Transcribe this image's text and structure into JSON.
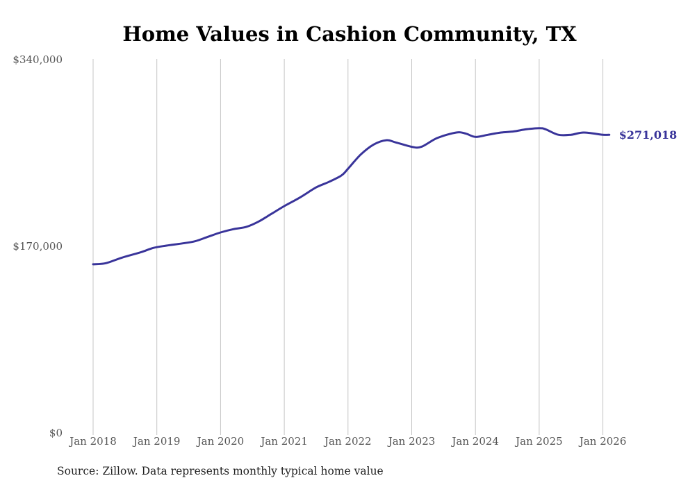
{
  "chart_data": {
    "type": "line",
    "title": "Home Values in Cashion Community, TX",
    "xlabel": "",
    "ylabel": "",
    "ylim": [
      0,
      340000
    ],
    "yticks": [
      0,
      170000,
      340000
    ],
    "ytick_labels": [
      "$0",
      "$170,000",
      "$340,000"
    ],
    "xlim": [
      2018.0,
      2026.1
    ],
    "xticks": [
      2018,
      2019,
      2020,
      2021,
      2022,
      2023,
      2024,
      2025,
      2026
    ],
    "xtick_labels": [
      "Jan 2018",
      "Jan 2019",
      "Jan 2020",
      "Jan 2021",
      "Jan 2022",
      "Jan 2023",
      "Jan 2024",
      "Jan 2025",
      "Jan 2026"
    ],
    "grid": "vertical",
    "series": [
      {
        "name": "Typical home value",
        "color": "#39349a",
        "x": [
          2018.0,
          2018.2,
          2018.45,
          2018.75,
          2018.95,
          2019.15,
          2019.4,
          2019.6,
          2019.8,
          2020.0,
          2020.2,
          2020.4,
          2020.6,
          2020.8,
          2021.0,
          2021.25,
          2021.5,
          2021.7,
          2021.9,
          2022.0,
          2022.2,
          2022.4,
          2022.6,
          2022.75,
          2023.0,
          2023.15,
          2023.4,
          2023.7,
          2023.85,
          2024.0,
          2024.2,
          2024.4,
          2024.6,
          2024.8,
          2025.0,
          2025.1,
          2025.3,
          2025.5,
          2025.7,
          2026.0,
          2026.1
        ],
        "values": [
          153000,
          154000,
          159000,
          164000,
          168000,
          170000,
          172000,
          174000,
          178000,
          182000,
          185000,
          187000,
          192000,
          199000,
          206000,
          214000,
          223000,
          228000,
          234000,
          240000,
          253000,
          262000,
          266000,
          264000,
          260000,
          260000,
          268000,
          273000,
          272000,
          269000,
          271000,
          273000,
          274000,
          276000,
          277000,
          276000,
          271000,
          271000,
          273000,
          271000,
          271018
        ]
      }
    ],
    "end_label": "$271,018"
  },
  "source_note": "Source: Zillow. Data represents monthly typical home value"
}
